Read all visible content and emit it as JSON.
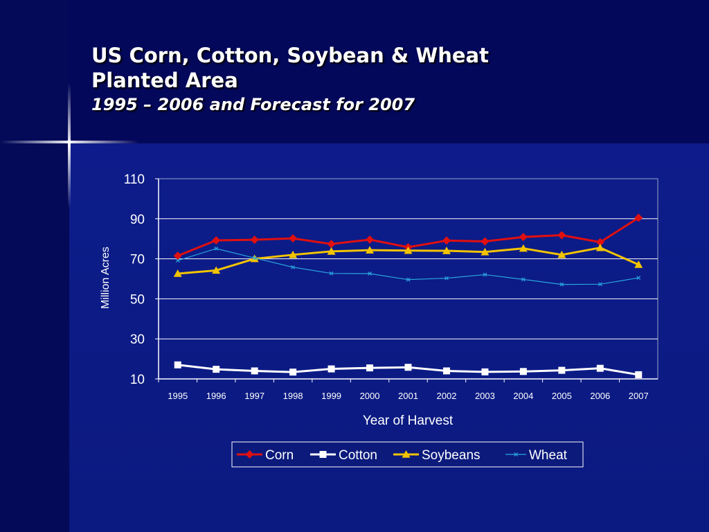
{
  "slide": {
    "title_line1": "US Corn, Cotton, Soybean & Wheat",
    "title_line2": "Planted Area",
    "subtitle": "1995 – 2006 and Forecast for 2007"
  },
  "colors": {
    "corn": "#e01010",
    "cotton": "#ffffff",
    "soybeans": "#f2c400",
    "wheat": "#2aa6e0",
    "background": "#0c1a7c",
    "gridline": "#ffffff"
  },
  "chart_data": {
    "type": "line",
    "title": "",
    "xlabel": "Year of Harvest",
    "ylabel": "Million Acres",
    "x": [
      "1995",
      "1996",
      "1997",
      "1998",
      "1999",
      "2000",
      "2001",
      "2002",
      "2003",
      "2004",
      "2005",
      "2006",
      "2007"
    ],
    "ylim": [
      10,
      110
    ],
    "yticks": [
      10,
      30,
      50,
      70,
      90,
      110
    ],
    "grid": true,
    "legend_position": "bottom",
    "series": [
      {
        "name": "Corn",
        "marker": "diamond",
        "color": "#e01010",
        "values": [
          71.5,
          79.2,
          79.5,
          80.2,
          77.4,
          79.6,
          75.8,
          79.1,
          78.7,
          80.9,
          81.8,
          78.3,
          90.5
        ]
      },
      {
        "name": "Cotton",
        "marker": "square",
        "color": "#ffffff",
        "values": [
          17.0,
          14.8,
          14.0,
          13.4,
          15.0,
          15.5,
          15.8,
          14.0,
          13.5,
          13.7,
          14.3,
          15.3,
          12.1
        ]
      },
      {
        "name": "Soybeans",
        "marker": "triangle",
        "color": "#f2c400",
        "values": [
          62.6,
          64.2,
          70.0,
          72.0,
          73.7,
          74.3,
          74.1,
          74.0,
          73.4,
          75.2,
          72.0,
          75.5,
          67.1
        ]
      },
      {
        "name": "Wheat",
        "marker": "x",
        "color": "#2aa6e0",
        "values": [
          69.1,
          75.1,
          70.4,
          65.8,
          62.7,
          62.6,
          59.6,
          60.3,
          62.1,
          59.7,
          57.2,
          57.3,
          60.5
        ]
      }
    ]
  }
}
